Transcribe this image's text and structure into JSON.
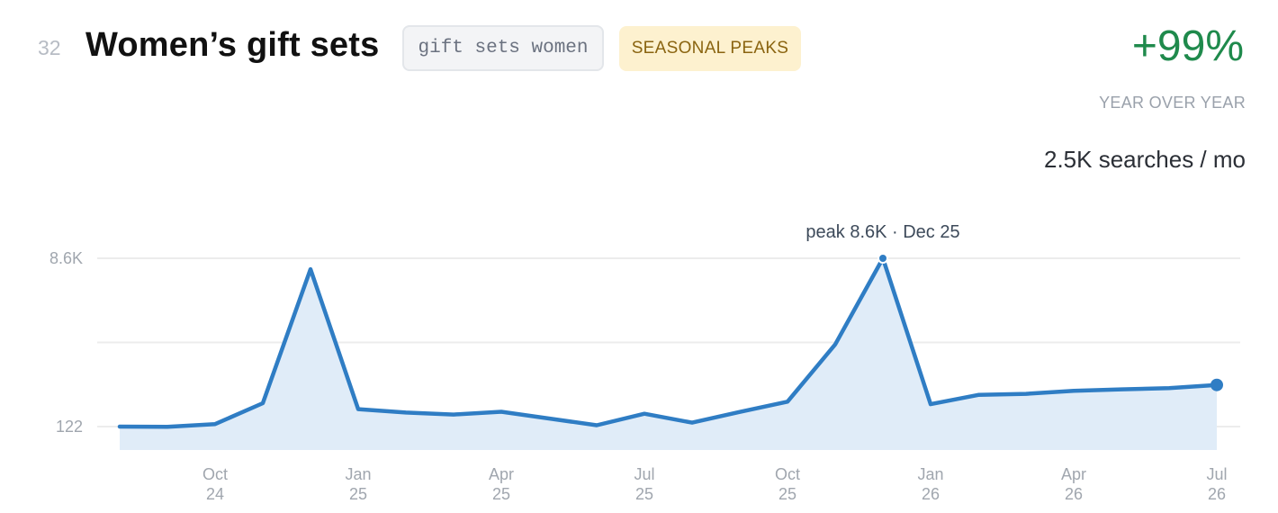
{
  "header": {
    "rank": "32",
    "title": "Women’s gift sets",
    "query": "gift sets women",
    "tag": "SEASONAL PEAKS",
    "yoy_value": "+99%",
    "yoy_label": "YEAR OVER YEAR",
    "volume": "2.5K searches / mo"
  },
  "colors": {
    "line": "#2f7dc4",
    "fill": "#e0ecf8",
    "yoy_positive": "#1f8a4c",
    "tag_background": "#fdf1cf",
    "tag_text": "#8a6410"
  },
  "chart_data": {
    "type": "area",
    "y_tick_labels": [
      "8.6K",
      "122"
    ],
    "y_ticks": [
      8600,
      122
    ],
    "ylim": [
      122,
      8600
    ],
    "grid": true,
    "peak_label": "peak 8.6K · Dec 25",
    "x_ticks": [
      {
        "month": "Oct",
        "year": "24"
      },
      {
        "month": "Jan",
        "year": "25"
      },
      {
        "month": "Apr",
        "year": "25"
      },
      {
        "month": "Jul",
        "year": "25"
      },
      {
        "month": "Oct",
        "year": "25"
      },
      {
        "month": "Jan",
        "year": "26"
      },
      {
        "month": "Apr",
        "year": "26"
      },
      {
        "month": "Jul",
        "year": "26"
      }
    ],
    "series": [
      {
        "x": [
          "2024-08",
          "2024-09",
          "2024-10",
          "2024-11",
          "2024-12",
          "2025-01",
          "2025-02",
          "2025-03",
          "2025-04",
          "2025-05",
          "2025-06",
          "2025-07",
          "2025-08",
          "2025-09",
          "2025-10",
          "2025-11",
          "2025-12",
          "2026-01",
          "2026-02",
          "2026-03",
          "2026-04",
          "2026-05",
          "2026-06",
          "2026-07"
        ],
        "values": [
          122,
          110,
          250,
          1300,
          8050,
          1000,
          830,
          730,
          870,
          530,
          190,
          770,
          320,
          860,
          1380,
          4260,
          8600,
          1250,
          1720,
          1770,
          1920,
          2000,
          2060,
          2220
        ]
      }
    ]
  }
}
